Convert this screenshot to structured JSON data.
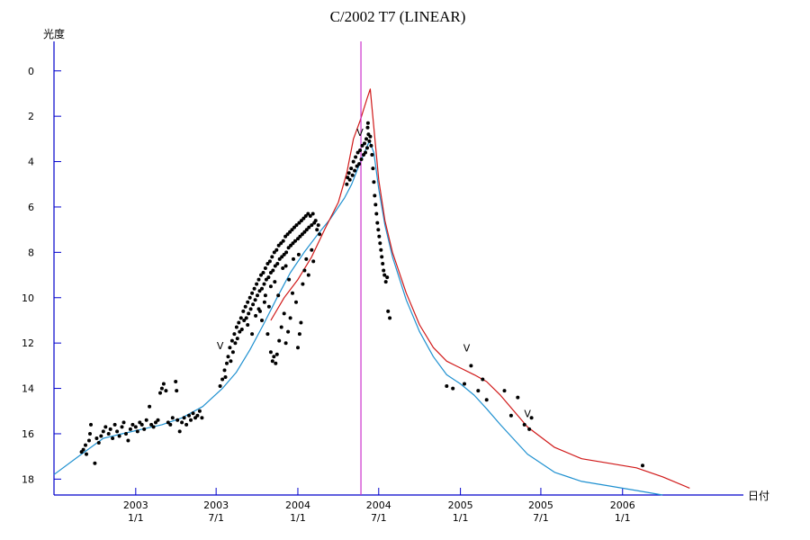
{
  "chart_data": {
    "type": "scatter",
    "title": "C/2002 T7 (LINEAR)",
    "ylabel": "光度",
    "xlabel": "日付",
    "y_reversed": true,
    "ylim": [
      18.7,
      -1.3
    ],
    "xlim": [
      "2002-07-01",
      "2006-09-30"
    ],
    "y_ticks": [
      0,
      2,
      4,
      6,
      8,
      10,
      12,
      14,
      16,
      18
    ],
    "x_ticks": [
      {
        "date": "2003-01-01",
        "year": "2003",
        "md": "1/1"
      },
      {
        "date": "2003-07-01",
        "year": "2003",
        "md": "7/1"
      },
      {
        "date": "2004-01-01",
        "year": "2004",
        "md": "1/1"
      },
      {
        "date": "2004-07-01",
        "year": "2004",
        "md": "7/1"
      },
      {
        "date": "2005-01-01",
        "year": "2005",
        "md": "1/1"
      },
      {
        "date": "2005-07-01",
        "year": "2005",
        "md": "7/1"
      },
      {
        "date": "2006-01-01",
        "year": "2006",
        "md": "1/1"
      }
    ],
    "vertical_marker": {
      "date": "2004-05-22",
      "color": "#cc33cc"
    },
    "series": [
      {
        "color": "#1e90d0",
        "points": [
          [
            "2002-07-01",
            17.8
          ],
          [
            "2002-09-01",
            16.9
          ],
          [
            "2002-10-20",
            16.2
          ],
          [
            "2002-12-01",
            16.0
          ],
          [
            "2003-01-15",
            15.8
          ],
          [
            "2003-03-01",
            15.6
          ],
          [
            "2003-04-15",
            15.3
          ],
          [
            "2003-06-01",
            14.8
          ],
          [
            "2003-07-15",
            14.0
          ],
          [
            "2003-08-15",
            13.3
          ],
          [
            "2003-09-15",
            12.3
          ],
          [
            "2003-10-15",
            11.2
          ],
          [
            "2003-11-15",
            10.0
          ],
          [
            "2003-12-15",
            8.9
          ],
          [
            "2004-01-15",
            8.0
          ],
          [
            "2004-02-15",
            7.2
          ],
          [
            "2004-03-15",
            6.5
          ],
          [
            "2004-04-15",
            5.6
          ],
          [
            "2004-05-01",
            5.0
          ],
          [
            "2004-05-15",
            4.3
          ],
          [
            "2004-06-01",
            3.5
          ],
          [
            "2004-06-10",
            3.1
          ],
          [
            "2004-06-20",
            3.6
          ],
          [
            "2004-07-01",
            5.2
          ],
          [
            "2004-07-15",
            6.8
          ],
          [
            "2004-08-01",
            8.2
          ],
          [
            "2004-09-01",
            10.1
          ],
          [
            "2004-10-01",
            11.5
          ],
          [
            "2004-11-01",
            12.6
          ],
          [
            "2004-12-01",
            13.4
          ],
          [
            "2005-01-01",
            13.8
          ],
          [
            "2005-02-01",
            14.3
          ],
          [
            "2005-03-01",
            14.9
          ],
          [
            "2005-04-01",
            15.6
          ],
          [
            "2005-06-01",
            16.9
          ],
          [
            "2005-08-01",
            17.7
          ],
          [
            "2005-10-01",
            18.1
          ],
          [
            "2005-12-01",
            18.3
          ],
          [
            "2006-02-01",
            18.5
          ],
          [
            "2006-04-01",
            18.7
          ]
        ]
      },
      {
        "color": "#d01818",
        "points": [
          [
            "2003-11-01",
            11.0
          ],
          [
            "2003-12-01",
            10.0
          ],
          [
            "2004-01-01",
            9.2
          ],
          [
            "2004-02-01",
            8.2
          ],
          [
            "2004-03-01",
            7.0
          ],
          [
            "2004-04-01",
            5.8
          ],
          [
            "2004-04-20",
            4.5
          ],
          [
            "2004-05-05",
            3.0
          ],
          [
            "2004-05-20",
            2.2
          ],
          [
            "2004-06-05",
            1.2
          ],
          [
            "2004-06-12",
            0.8
          ],
          [
            "2004-06-20",
            2.5
          ],
          [
            "2004-07-01",
            4.8
          ],
          [
            "2004-07-15",
            6.6
          ],
          [
            "2004-08-01",
            8.0
          ],
          [
            "2004-09-01",
            9.8
          ],
          [
            "2004-10-01",
            11.2
          ],
          [
            "2004-11-01",
            12.2
          ],
          [
            "2004-12-01",
            12.8
          ],
          [
            "2005-01-01",
            13.1
          ],
          [
            "2005-02-01",
            13.4
          ],
          [
            "2005-03-01",
            13.7
          ],
          [
            "2005-04-01",
            14.3
          ],
          [
            "2005-06-01",
            15.7
          ],
          [
            "2005-08-01",
            16.6
          ],
          [
            "2005-10-01",
            17.1
          ],
          [
            "2005-12-01",
            17.3
          ],
          [
            "2006-02-01",
            17.5
          ],
          [
            "2006-04-01",
            17.9
          ],
          [
            "2006-06-01",
            18.4
          ]
        ]
      }
    ],
    "observations_color": "#000000",
    "observations": [
      [
        "2002-09-01",
        16.8
      ],
      [
        "2002-09-05",
        16.7
      ],
      [
        "2002-09-10",
        16.5
      ],
      [
        "2002-09-12",
        16.9
      ],
      [
        "2002-09-18",
        16.3
      ],
      [
        "2002-09-20",
        16.0
      ],
      [
        "2002-09-22",
        15.6
      ],
      [
        "2002-10-01",
        17.3
      ],
      [
        "2002-10-05",
        16.2
      ],
      [
        "2002-10-10",
        16.4
      ],
      [
        "2002-10-15",
        16.1
      ],
      [
        "2002-10-20",
        15.9
      ],
      [
        "2002-10-25",
        15.7
      ],
      [
        "2002-11-01",
        16.0
      ],
      [
        "2002-11-05",
        15.8
      ],
      [
        "2002-11-10",
        16.2
      ],
      [
        "2002-11-15",
        15.6
      ],
      [
        "2002-11-20",
        15.9
      ],
      [
        "2002-11-25",
        16.1
      ],
      [
        "2002-12-01",
        15.7
      ],
      [
        "2002-12-05",
        15.5
      ],
      [
        "2002-12-10",
        16.0
      ],
      [
        "2002-12-15",
        16.3
      ],
      [
        "2002-12-20",
        15.8
      ],
      [
        "2002-12-25",
        15.6
      ],
      [
        "2003-01-01",
        15.7
      ],
      [
        "2003-01-05",
        15.9
      ],
      [
        "2003-01-10",
        15.5
      ],
      [
        "2003-01-15",
        15.6
      ],
      [
        "2003-01-20",
        15.8
      ],
      [
        "2003-01-25",
        15.4
      ],
      [
        "2003-02-01",
        14.8
      ],
      [
        "2003-02-05",
        15.6
      ],
      [
        "2003-02-10",
        15.7
      ],
      [
        "2003-02-15",
        15.5
      ],
      [
        "2003-02-20",
        15.4
      ],
      [
        "2003-02-25",
        14.2
      ],
      [
        "2003-03-01",
        14.0
      ],
      [
        "2003-03-05",
        13.8
      ],
      [
        "2003-03-10",
        14.1
      ],
      [
        "2003-03-15",
        15.5
      ],
      [
        "2003-03-20",
        15.6
      ],
      [
        "2003-03-25",
        15.3
      ],
      [
        "2003-04-01",
        13.7
      ],
      [
        "2003-04-03",
        14.1
      ],
      [
        "2003-04-05",
        15.4
      ],
      [
        "2003-04-10",
        15.9
      ],
      [
        "2003-04-15",
        15.5
      ],
      [
        "2003-04-20",
        15.3
      ],
      [
        "2003-04-25",
        15.6
      ],
      [
        "2003-05-01",
        15.2
      ],
      [
        "2003-05-05",
        15.4
      ],
      [
        "2003-05-10",
        15.1
      ],
      [
        "2003-05-15",
        15.3
      ],
      [
        "2003-05-20",
        15.2
      ],
      [
        "2003-05-25",
        15.0
      ],
      [
        "2003-05-30",
        15.3
      ],
      [
        "2003-07-10",
        13.9
      ],
      [
        "2003-07-15",
        13.6
      ],
      [
        "2003-07-20",
        13.2
      ],
      [
        "2003-07-22",
        13.5
      ],
      [
        "2003-07-25",
        12.9
      ],
      [
        "2003-07-28",
        12.6
      ],
      [
        "2003-08-01",
        12.2
      ],
      [
        "2003-08-03",
        12.8
      ],
      [
        "2003-08-06",
        11.9
      ],
      [
        "2003-08-08",
        12.4
      ],
      [
        "2003-08-11",
        11.6
      ],
      [
        "2003-08-13",
        12.0
      ],
      [
        "2003-08-16",
        11.3
      ],
      [
        "2003-08-18",
        11.8
      ],
      [
        "2003-08-21",
        11.1
      ],
      [
        "2003-08-23",
        11.5
      ],
      [
        "2003-08-26",
        10.9
      ],
      [
        "2003-08-28",
        11.4
      ],
      [
        "2003-08-31",
        10.6
      ],
      [
        "2003-09-02",
        11.0
      ],
      [
        "2003-09-05",
        10.4
      ],
      [
        "2003-09-07",
        10.9
      ],
      [
        "2003-09-10",
        10.2
      ],
      [
        "2003-09-12",
        10.7
      ],
      [
        "2003-09-15",
        10.0
      ],
      [
        "2003-09-17",
        10.5
      ],
      [
        "2003-09-20",
        9.8
      ],
      [
        "2003-09-22",
        10.3
      ],
      [
        "2003-09-25",
        9.6
      ],
      [
        "2003-09-27",
        10.1
      ],
      [
        "2003-09-30",
        9.4
      ],
      [
        "2003-10-02",
        9.9
      ],
      [
        "2003-10-05",
        9.2
      ],
      [
        "2003-10-07",
        9.7
      ],
      [
        "2003-10-10",
        9.0
      ],
      [
        "2003-10-12",
        9.6
      ],
      [
        "2003-10-15",
        8.9
      ],
      [
        "2003-10-17",
        9.4
      ],
      [
        "2003-10-20",
        8.7
      ],
      [
        "2003-10-22",
        9.2
      ],
      [
        "2003-10-25",
        8.5
      ],
      [
        "2003-10-27",
        9.1
      ],
      [
        "2003-10-30",
        8.4
      ],
      [
        "2003-11-01",
        8.9
      ],
      [
        "2003-11-04",
        8.2
      ],
      [
        "2003-11-06",
        8.8
      ],
      [
        "2003-11-09",
        8.0
      ],
      [
        "2003-11-11",
        8.6
      ],
      [
        "2003-11-14",
        7.9
      ],
      [
        "2003-11-16",
        8.5
      ],
      [
        "2003-11-19",
        7.7
      ],
      [
        "2003-11-21",
        8.3
      ],
      [
        "2003-11-24",
        7.6
      ],
      [
        "2003-11-26",
        8.2
      ],
      [
        "2003-11-29",
        7.5
      ],
      [
        "2003-12-01",
        8.1
      ],
      [
        "2003-12-04",
        7.3
      ],
      [
        "2003-12-06",
        8.0
      ],
      [
        "2003-12-09",
        7.2
      ],
      [
        "2003-12-11",
        7.8
      ],
      [
        "2003-12-14",
        7.1
      ],
      [
        "2003-12-16",
        7.7
      ],
      [
        "2003-12-19",
        7.0
      ],
      [
        "2003-12-21",
        7.6
      ],
      [
        "2003-12-24",
        6.9
      ],
      [
        "2003-12-26",
        7.5
      ],
      [
        "2003-12-29",
        6.8
      ],
      [
        "2004-01-01",
        7.4
      ],
      [
        "2004-01-04",
        6.7
      ],
      [
        "2004-01-06",
        7.3
      ],
      [
        "2004-01-09",
        6.6
      ],
      [
        "2004-01-11",
        7.2
      ],
      [
        "2004-01-14",
        6.5
      ],
      [
        "2004-01-16",
        7.1
      ],
      [
        "2004-01-19",
        6.4
      ],
      [
        "2004-01-21",
        7.0
      ],
      [
        "2004-01-24",
        6.3
      ],
      [
        "2004-01-26",
        6.9
      ],
      [
        "2004-01-29",
        6.4
      ],
      [
        "2004-02-01",
        6.8
      ],
      [
        "2004-02-04",
        6.3
      ],
      [
        "2004-02-07",
        6.7
      ],
      [
        "2004-02-10",
        6.6
      ],
      [
        "2004-02-13",
        7.0
      ],
      [
        "2004-02-16",
        6.8
      ],
      [
        "2004-02-19",
        7.2
      ],
      [
        "2003-09-10",
        11.2
      ],
      [
        "2003-09-20",
        11.6
      ],
      [
        "2003-09-28",
        10.8
      ],
      [
        "2003-10-05",
        10.5
      ],
      [
        "2003-10-12",
        11.0
      ],
      [
        "2003-10-18",
        10.2
      ],
      [
        "2003-10-25",
        11.6
      ],
      [
        "2003-11-01",
        12.4
      ],
      [
        "2003-11-05",
        12.8
      ],
      [
        "2003-11-08",
        12.6
      ],
      [
        "2003-11-12",
        12.9
      ],
      [
        "2003-11-15",
        12.5
      ],
      [
        "2003-11-20",
        11.9
      ],
      [
        "2003-11-25",
        11.3
      ],
      [
        "2003-12-01",
        10.7
      ],
      [
        "2003-12-05",
        12.0
      ],
      [
        "2003-12-10",
        11.5
      ],
      [
        "2003-12-15",
        10.9
      ],
      [
        "2003-12-20",
        9.8
      ],
      [
        "2004-01-01",
        12.2
      ],
      [
        "2004-01-05",
        11.6
      ],
      [
        "2004-01-08",
        11.1
      ],
      [
        "2004-01-12",
        9.4
      ],
      [
        "2004-01-16",
        8.8
      ],
      [
        "2004-01-20",
        8.3
      ],
      [
        "2004-01-25",
        9.0
      ],
      [
        "2004-02-01",
        7.9
      ],
      [
        "2004-02-05",
        8.4
      ],
      [
        "2003-11-01",
        9.5
      ],
      [
        "2003-11-10",
        9.3
      ],
      [
        "2003-11-18",
        9.9
      ],
      [
        "2003-11-28",
        8.7
      ],
      [
        "2003-12-05",
        8.6
      ],
      [
        "2003-12-12",
        9.2
      ],
      [
        "2003-12-22",
        8.3
      ],
      [
        "2004-01-03",
        8.1
      ],
      [
        "2003-10-20",
        9.9
      ],
      [
        "2003-10-08",
        10.6
      ],
      [
        "2003-10-28",
        10.4
      ],
      [
        "2003-12-28",
        10.2
      ],
      [
        "2004-04-20",
        5.0
      ],
      [
        "2004-04-22",
        4.7
      ],
      [
        "2004-04-25",
        4.5
      ],
      [
        "2004-04-27",
        4.8
      ],
      [
        "2004-04-30",
        4.3
      ],
      [
        "2004-05-03",
        4.6
      ],
      [
        "2004-05-05",
        4.0
      ],
      [
        "2004-05-08",
        4.4
      ],
      [
        "2004-05-10",
        3.8
      ],
      [
        "2004-05-13",
        4.2
      ],
      [
        "2004-05-15",
        3.6
      ],
      [
        "2004-05-18",
        4.1
      ],
      [
        "2004-05-20",
        3.5
      ],
      [
        "2004-05-23",
        3.9
      ],
      [
        "2004-05-25",
        3.3
      ],
      [
        "2004-05-28",
        3.7
      ],
      [
        "2004-05-30",
        3.2
      ],
      [
        "2004-06-01",
        3.6
      ],
      [
        "2004-06-03",
        3.0
      ],
      [
        "2004-06-05",
        3.4
      ],
      [
        "2004-06-06",
        2.5
      ],
      [
        "2004-06-07",
        2.3
      ],
      [
        "2004-06-08",
        2.8
      ],
      [
        "2004-06-10",
        3.1
      ],
      [
        "2004-06-12",
        2.9
      ],
      [
        "2004-06-14",
        3.3
      ],
      [
        "2004-06-16",
        3.7
      ],
      [
        "2004-06-18",
        4.3
      ],
      [
        "2004-06-20",
        4.9
      ],
      [
        "2004-06-22",
        5.5
      ],
      [
        "2004-06-24",
        5.9
      ],
      [
        "2004-06-26",
        6.3
      ],
      [
        "2004-06-28",
        6.7
      ],
      [
        "2004-06-30",
        7.0
      ],
      [
        "2004-07-02",
        7.3
      ],
      [
        "2004-07-04",
        7.6
      ],
      [
        "2004-07-06",
        7.9
      ],
      [
        "2004-07-08",
        8.2
      ],
      [
        "2004-07-10",
        8.5
      ],
      [
        "2004-07-12",
        8.8
      ],
      [
        "2004-07-14",
        9.0
      ],
      [
        "2004-07-17",
        9.3
      ],
      [
        "2004-07-20",
        9.1
      ],
      [
        "2004-07-22",
        10.6
      ],
      [
        "2004-07-26",
        10.9
      ],
      [
        "2004-12-01",
        13.9
      ],
      [
        "2004-12-15",
        14.0
      ],
      [
        "2005-01-10",
        13.8
      ],
      [
        "2005-01-25",
        13.0
      ],
      [
        "2005-02-10",
        14.1
      ],
      [
        "2005-02-20",
        13.6
      ],
      [
        "2005-03-01",
        14.5
      ],
      [
        "2005-04-10",
        14.1
      ],
      [
        "2005-04-25",
        15.2
      ],
      [
        "2005-05-10",
        14.4
      ],
      [
        "2005-05-25",
        15.6
      ],
      [
        "2005-06-05",
        15.8
      ],
      [
        "2005-06-10",
        15.3
      ],
      [
        "2006-02-15",
        17.4
      ]
    ],
    "annotations": [
      {
        "text": "V",
        "date": "2003-07-10",
        "mag": 12.5
      },
      {
        "text": "V",
        "date": "2004-05-20",
        "mag": 3.1
      },
      {
        "text": "V",
        "date": "2005-01-15",
        "mag": 12.6
      },
      {
        "text": "V",
        "date": "2005-06-01",
        "mag": 15.5
      }
    ]
  }
}
